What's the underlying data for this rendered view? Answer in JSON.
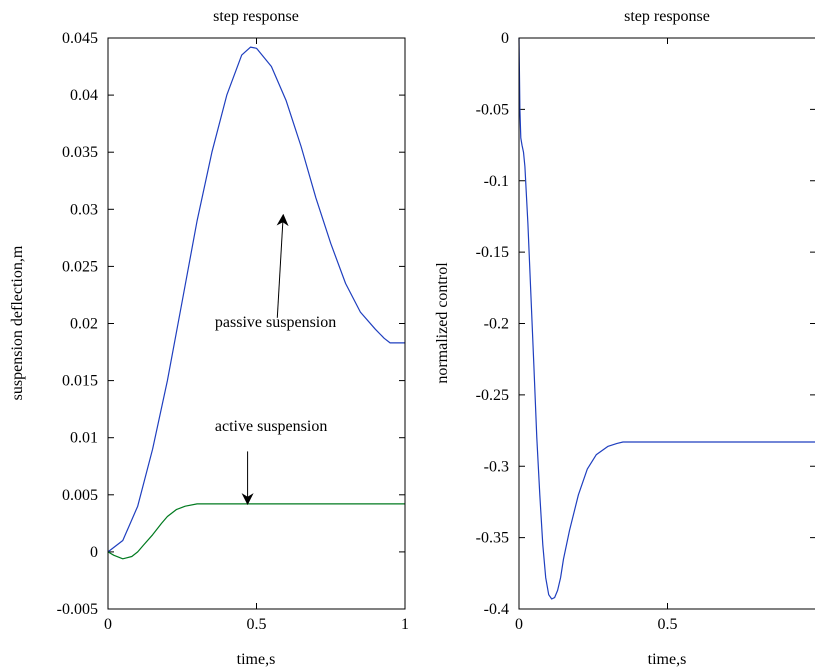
{
  "chart_data": [
    {
      "type": "line",
      "title": "step response",
      "xlabel": "time,s",
      "ylabel": "suspension deflection,m",
      "xlim": [
        0,
        1
      ],
      "ylim": [
        -0.005,
        0.045
      ],
      "xticks": [
        0,
        0.5,
        1
      ],
      "xtick_labels": [
        "0",
        "0.5",
        "1"
      ],
      "yticks": [
        -0.005,
        0,
        0.005,
        0.01,
        0.015,
        0.02,
        0.025,
        0.03,
        0.035,
        0.04,
        0.045
      ],
      "ytick_labels": [
        "-0.005",
        "0",
        "0.005",
        "0.01",
        "0.015",
        "0.02",
        "0.025",
        "0.03",
        "0.035",
        "0.04",
        "0.045"
      ],
      "grid": false,
      "series": [
        {
          "color": "#1f3fbf",
          "x": [
            0,
            0.05,
            0.1,
            0.15,
            0.2,
            0.25,
            0.3,
            0.35,
            0.4,
            0.45,
            0.48,
            0.5,
            0.55,
            0.6,
            0.65,
            0.7,
            0.75,
            0.8,
            0.85,
            0.9,
            0.93,
            0.95,
            1.0
          ],
          "y": [
            0,
            0.001,
            0.004,
            0.009,
            0.015,
            0.022,
            0.029,
            0.035,
            0.04,
            0.0435,
            0.0442,
            0.0441,
            0.0425,
            0.0395,
            0.0355,
            0.031,
            0.027,
            0.0235,
            0.021,
            0.0195,
            0.0187,
            0.0183,
            0.0183
          ]
        },
        {
          "color": "#007a1f",
          "x": [
            0,
            0.02,
            0.05,
            0.08,
            0.1,
            0.12,
            0.15,
            0.18,
            0.2,
            0.23,
            0.26,
            0.3,
            0.4,
            0.6,
            0.8,
            1.0
          ],
          "y": [
            0,
            -0.0003,
            -0.0006,
            -0.0004,
            0,
            0.0006,
            0.0015,
            0.0025,
            0.0031,
            0.0037,
            0.004,
            0.0042,
            0.0042,
            0.0042,
            0.0042,
            0.0042
          ]
        }
      ],
      "annotations": [
        {
          "text": "passive suspension",
          "label_x": 0.36,
          "label_y": 0.0197,
          "arrow_from": [
            0.57,
            0.0205
          ],
          "arrow_to": [
            0.59,
            0.0295
          ]
        },
        {
          "text": "active suspension",
          "label_x": 0.36,
          "label_y": 0.0106,
          "arrow_from": [
            0.47,
            0.0088
          ],
          "arrow_to": [
            0.47,
            0.0042
          ]
        }
      ]
    },
    {
      "type": "line",
      "title": "step response",
      "xlabel": "time,s",
      "ylabel": "normalized control",
      "xlim": [
        0,
        1
      ],
      "ylim": [
        -0.4,
        0
      ],
      "xticks": [
        0,
        0.5
      ],
      "xtick_labels": [
        "0",
        "0.5"
      ],
      "yticks": [
        -0.4,
        -0.35,
        -0.3,
        -0.25,
        -0.2,
        -0.15,
        -0.1,
        -0.05,
        0
      ],
      "ytick_labels": [
        "-0.4",
        "-0.35",
        "-0.3",
        "-0.25",
        "-0.2",
        "-0.15",
        "-0.1",
        "-0.05",
        "0"
      ],
      "grid": false,
      "series": [
        {
          "color": "#1f3fbf",
          "x": [
            0,
            0.003,
            0.006,
            0.01,
            0.015,
            0.02,
            0.03,
            0.04,
            0.05,
            0.06,
            0.07,
            0.08,
            0.09,
            0.1,
            0.11,
            0.12,
            0.13,
            0.14,
            0.15,
            0.17,
            0.2,
            0.23,
            0.26,
            0.3,
            0.33,
            0.35,
            0.4,
            0.6,
            0.8,
            1.0
          ],
          "y": [
            0,
            -0.05,
            -0.07,
            -0.075,
            -0.08,
            -0.09,
            -0.13,
            -0.18,
            -0.23,
            -0.28,
            -0.32,
            -0.355,
            -0.378,
            -0.39,
            -0.393,
            -0.392,
            -0.387,
            -0.378,
            -0.365,
            -0.345,
            -0.32,
            -0.302,
            -0.292,
            -0.286,
            -0.284,
            -0.283,
            -0.283,
            -0.283,
            -0.283,
            -0.283
          ]
        }
      ],
      "annotations": []
    }
  ]
}
